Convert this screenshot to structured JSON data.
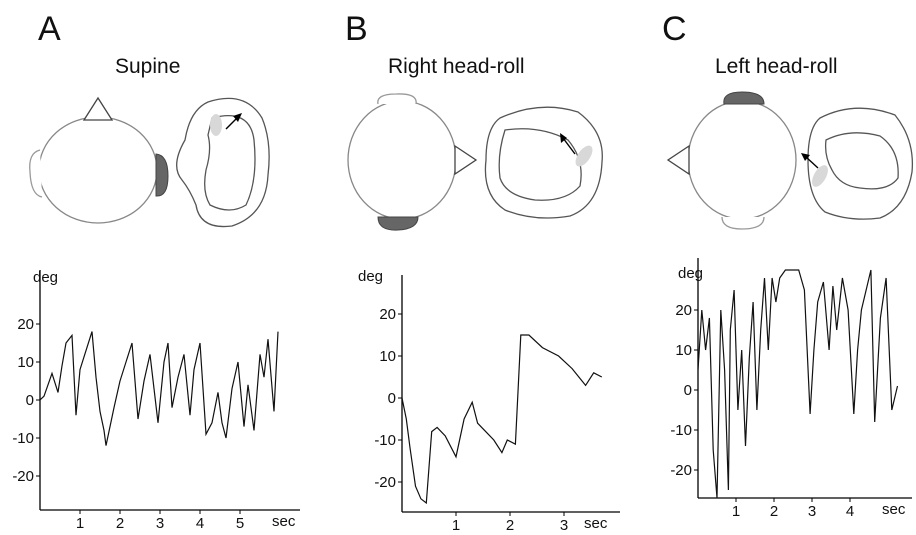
{
  "panels": [
    {
      "letter": "A",
      "title": "Supine",
      "chart_data": {
        "type": "line",
        "ylabel": "deg",
        "xlabel": "sec",
        "xticks": [
          "1",
          "2",
          "3",
          "4",
          "5"
        ],
        "yticks": [
          "20",
          "10",
          "0",
          "-10",
          "-20"
        ],
        "xlim": [
          0,
          6.2
        ],
        "ylim": [
          -28,
          28
        ],
        "series": [
          {
            "x": [
              0,
              0.1,
              0.2,
              0.3,
              0.45,
              0.55,
              0.65,
              0.8,
              0.9,
              1.0,
              1.15,
              1.3,
              1.4,
              1.5,
              1.6,
              1.65,
              1.75,
              1.85,
              2.0,
              2.15,
              2.3,
              2.45,
              2.6,
              2.75,
              2.85,
              2.95,
              3.1,
              3.2,
              3.3,
              3.45,
              3.6,
              3.75,
              3.85,
              4.0,
              4.15,
              4.3,
              4.45,
              4.55,
              4.65,
              4.8,
              4.95,
              5.1,
              5.2,
              5.35,
              5.5,
              5.6,
              5.7,
              5.85,
              5.95
            ],
            "y": [
              0,
              1,
              4,
              7,
              2,
              9,
              15,
              17,
              -4,
              8,
              13,
              18,
              6,
              -3,
              -8,
              -12,
              -7,
              -2,
              5,
              10,
              15,
              -5,
              5,
              12,
              3,
              -6,
              10,
              15,
              -2,
              6,
              12,
              -4,
              8,
              15,
              -9,
              -6,
              2,
              -6,
              -10,
              3,
              10,
              -7,
              4,
              -8,
              12,
              6,
              16,
              -3,
              18
            ]
          }
        ]
      }
    },
    {
      "letter": "B",
      "title": "Right head-roll",
      "chart_data": {
        "type": "line",
        "ylabel": "deg",
        "xlabel": "sec",
        "xticks": [
          "1",
          "2",
          "3"
        ],
        "yticks": [
          "20",
          "10",
          "0",
          "-10",
          "-20"
        ],
        "xlim": [
          0,
          4.6
        ],
        "ylim": [
          -28,
          28
        ],
        "series": [
          {
            "x": [
              0,
              0.08,
              0.15,
              0.25,
              0.35,
              0.45,
              0.55,
              0.65,
              0.8,
              1.0,
              1.15,
              1.3,
              1.4,
              1.55,
              1.7,
              1.85,
              1.95,
              2.1,
              2.2,
              2.35,
              2.6,
              2.9,
              3.15,
              3.4,
              3.55,
              3.7
            ],
            "y": [
              0,
              -5,
              -12,
              -21,
              -24,
              -25,
              -8,
              -7,
              -9,
              -14,
              -5,
              -1,
              -6,
              -8,
              -10,
              -13,
              -10,
              -11,
              15,
              15,
              12,
              10,
              7,
              3,
              6,
              5
            ]
          }
        ]
      }
    },
    {
      "letter": "C",
      "title": "Left head-roll",
      "chart_data": {
        "type": "line",
        "ylabel": "deg",
        "xlabel": "sec",
        "xticks": [
          "1",
          "2",
          "3",
          "4"
        ],
        "yticks": [
          "20",
          "10",
          "0",
          "-10",
          "-20"
        ],
        "xlim": [
          0,
          5.6
        ],
        "ylim": [
          -28,
          28
        ],
        "series": [
          {
            "x": [
              0,
              0.1,
              0.2,
              0.3,
              0.4,
              0.5,
              0.6,
              0.7,
              0.8,
              0.85,
              0.95,
              1.05,
              1.15,
              1.25,
              1.35,
              1.45,
              1.55,
              1.65,
              1.75,
              1.85,
              1.95,
              2.05,
              2.15,
              2.3,
              2.45,
              2.55,
              2.65,
              2.8,
              2.95,
              3.05,
              3.15,
              3.3,
              3.45,
              3.55,
              3.65,
              3.8,
              3.95,
              4.1,
              4.2,
              4.3,
              4.45,
              4.55,
              4.65,
              4.8,
              4.95,
              5.1,
              5.25
            ],
            "y": [
              5,
              20,
              10,
              18,
              -15,
              -27,
              20,
              5,
              -25,
              15,
              25,
              -5,
              10,
              -14,
              8,
              22,
              -5,
              15,
              28,
              10,
              28,
              22,
              28,
              30,
              30,
              30,
              30,
              25,
              -6,
              10,
              22,
              27,
              10,
              26,
              15,
              28,
              20,
              -6,
              10,
              20,
              26,
              30,
              -8,
              18,
              28,
              -5,
              1
            ]
          }
        ]
      }
    }
  ]
}
